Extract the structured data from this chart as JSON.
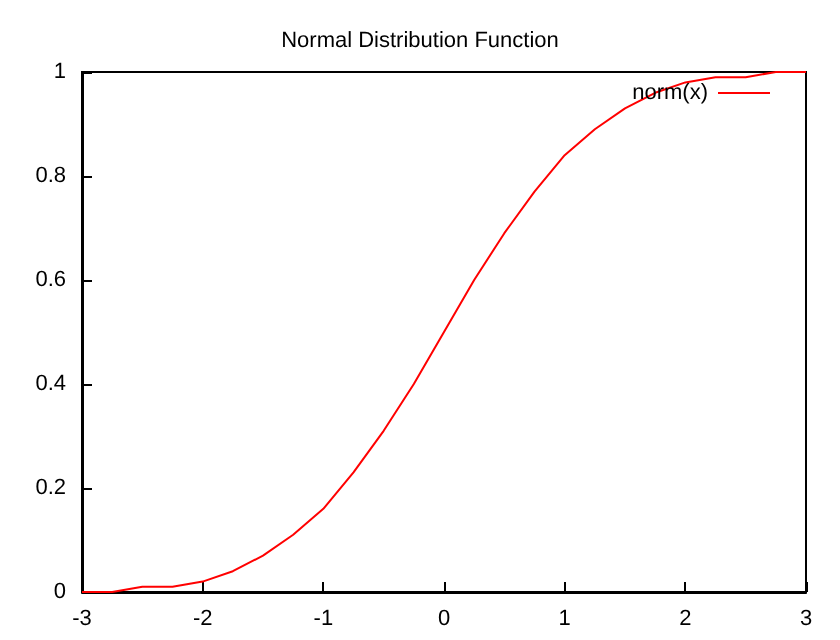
{
  "chart_data": {
    "type": "line",
    "title": "Normal Distribution Function",
    "x": [
      -3,
      -2.75,
      -2.5,
      -2.25,
      -2,
      -1.75,
      -1.5,
      -1.25,
      -1,
      -0.75,
      -0.5,
      -0.25,
      0,
      0.25,
      0.5,
      0.75,
      1,
      1.25,
      1.5,
      1.75,
      2,
      2.25,
      2.5,
      2.75,
      3
    ],
    "series": [
      {
        "name": "norm(x)",
        "color": "#ff0000",
        "values": [
          0,
          0,
          0.01,
          0.01,
          0.02,
          0.04,
          0.07,
          0.11,
          0.16,
          0.23,
          0.31,
          0.4,
          0.5,
          0.6,
          0.69,
          0.77,
          0.84,
          0.89,
          0.93,
          0.96,
          0.98,
          0.99,
          0.99,
          1,
          1
        ]
      }
    ],
    "xlim": [
      -3,
      3
    ],
    "xticks": [
      -3,
      -2,
      -1,
      0,
      1,
      2,
      3
    ],
    "ylim": [
      0,
      1
    ],
    "yticks": [
      0,
      0.2,
      0.4,
      0.6,
      0.8,
      1
    ],
    "legend": "top right",
    "marker": "none",
    "grid": false
  }
}
